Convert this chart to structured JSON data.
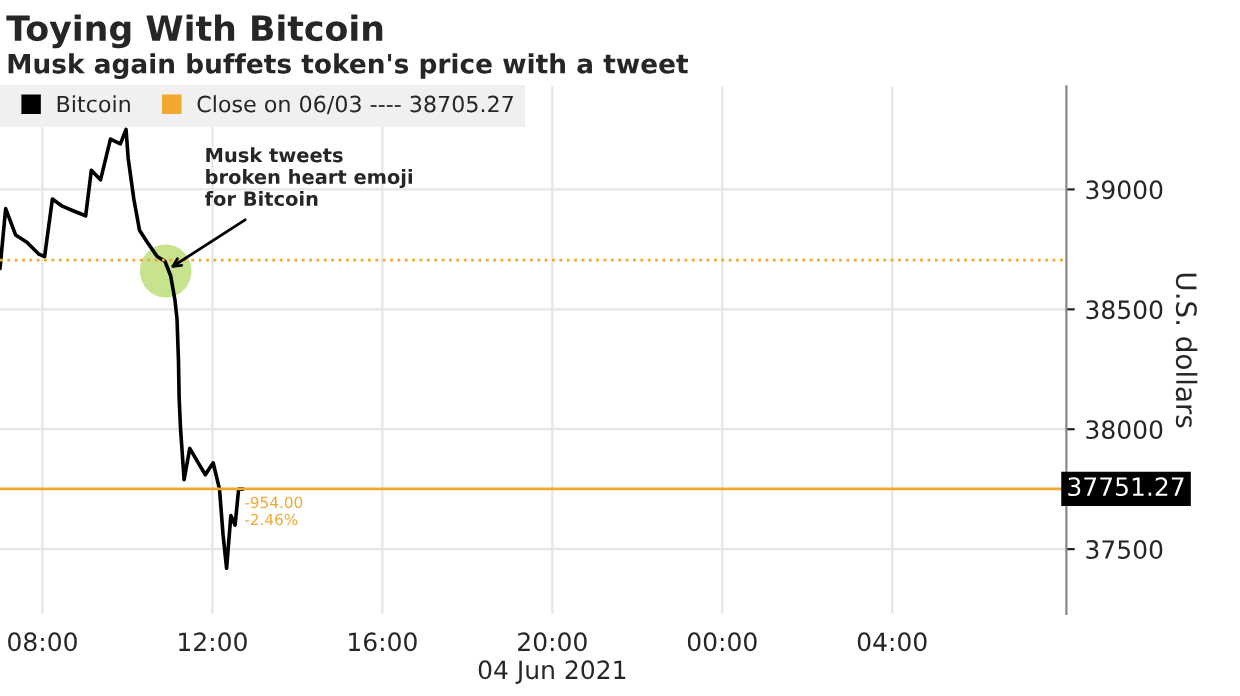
{
  "chart_data": {
    "type": "line",
    "title": "Toying With Bitcoin",
    "subtitle": "Musk again buffets token's price with a tweet",
    "ylabel": "U.S. dollars",
    "x": [
      "2021-06-04T07:00",
      "2021-06-04T07:08",
      "2021-06-04T07:22",
      "2021-06-04T07:38",
      "2021-06-04T07:55",
      "2021-06-04T08:03",
      "2021-06-04T08:14",
      "2021-06-04T08:28",
      "2021-06-04T08:44",
      "2021-06-04T09:01",
      "2021-06-04T09:09",
      "2021-06-04T09:22",
      "2021-06-04T09:36",
      "2021-06-04T09:50",
      "2021-06-04T09:58",
      "2021-06-04T10:01",
      "2021-06-04T10:09",
      "2021-06-04T10:17",
      "2021-06-04T10:28",
      "2021-06-04T10:42",
      "2021-06-04T10:53",
      "2021-06-04T11:01",
      "2021-06-04T11:07",
      "2021-06-04T11:10",
      "2021-06-04T11:12",
      "2021-06-04T11:13",
      "2021-06-04T11:15",
      "2021-06-04T11:20",
      "2021-06-04T11:28",
      "2021-06-04T11:40",
      "2021-06-04T11:50",
      "2021-06-04T12:01",
      "2021-06-04T12:10",
      "2021-06-04T12:15",
      "2021-06-04T12:20",
      "2021-06-04T12:26",
      "2021-06-04T12:32",
      "2021-06-04T12:37",
      "2021-06-04T12:43"
    ],
    "series": [
      {
        "name": "Bitcoin",
        "color": "#000000",
        "values": [
          38670,
          38920,
          38810,
          38780,
          38730,
          38720,
          38960,
          38930,
          38910,
          38890,
          39080,
          39040,
          39210,
          39190,
          39250,
          39130,
          38960,
          38830,
          38780,
          38720,
          38700,
          38640,
          38540,
          38460,
          38290,
          38130,
          38000,
          37790,
          37920,
          37860,
          37810,
          37860,
          37750,
          37560,
          37420,
          37640,
          37600,
          37750,
          37750
        ]
      }
    ],
    "xlim": [
      "2021-06-04T07:00",
      "2021-06-05T08:06"
    ],
    "xticks": [
      {
        "value": "2021-06-04T08:00",
        "label": "08:00"
      },
      {
        "value": "2021-06-04T12:00",
        "label": "12:00"
      },
      {
        "value": "2021-06-04T16:00",
        "label": "16:00"
      },
      {
        "value": "2021-06-04T20:00",
        "label": "20:00\n04 Jun 2021"
      },
      {
        "value": "2021-06-05T00:00",
        "label": "00:00"
      },
      {
        "value": "2021-06-05T04:00",
        "label": "04:00"
      }
    ],
    "ylim": [
      37230,
      39430
    ],
    "yticks": [
      37500,
      38000,
      38500,
      39000
    ],
    "ref_lines": [
      {
        "axis": "y",
        "value": 38705.27,
        "label": "Close on 06/03 ---- 38705.27",
        "color": "#f0a830",
        "line_style": "dotted"
      },
      {
        "axis": "y",
        "value": 37751.27,
        "label": "37751.27",
        "color": "#f0a830",
        "line_style": "solid"
      }
    ],
    "annotations": [
      {
        "text": "Musk tweets\nbroken heart emoji\nfor Bitcoin",
        "x": "2021-06-04T10:54",
        "y": 38660
      },
      {
        "text": "-954.00\n-2.46%",
        "x": "2021-06-04T12:45",
        "y": 37720
      }
    ],
    "grid": true,
    "legend": "top left",
    "line_style": "solid",
    "marker": "none"
  }
}
